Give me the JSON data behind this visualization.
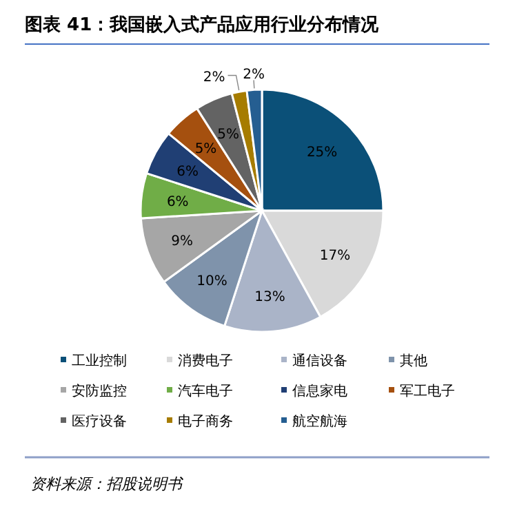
{
  "chart_data": {
    "type": "pie",
    "title": "图表 41：我国嵌入式产品应用行业分布情况",
    "categories": [
      "工业控制",
      "消费电子",
      "通信设备",
      "其他",
      "安防监控",
      "汽车电子",
      "信息家电",
      "军工电子",
      "医疗设备",
      "电子商务",
      "航空航海"
    ],
    "values": [
      25,
      17,
      13,
      10,
      9,
      6,
      6,
      5,
      5,
      2,
      2
    ],
    "value_labels": [
      "25%",
      "17%",
      "13%",
      "10%",
      "9%",
      "6%",
      "6%",
      "5%",
      "5%",
      "2%",
      "2%"
    ],
    "colors": [
      "#0b5078",
      "#d9d9d9",
      "#aab4c8",
      "#7f93ab",
      "#a6a6a6",
      "#70ad47",
      "#203f74",
      "#a5500f",
      "#636363",
      "#a67c00",
      "#255e91"
    ],
    "legend": "bottom",
    "annotations": [
      "资料来源：招股说明书"
    ]
  }
}
